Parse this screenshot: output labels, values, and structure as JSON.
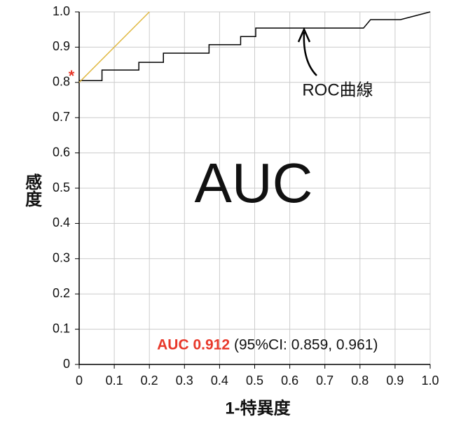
{
  "chart_data": {
    "type": "line",
    "xlabel": "1-特異度",
    "ylabel": "感度",
    "xlim": [
      0,
      1
    ],
    "ylim": [
      0,
      1
    ],
    "xticks": [
      0,
      0.1,
      0.2,
      0.3,
      0.4,
      0.5,
      0.6,
      0.7,
      0.8,
      0.9,
      {
        "value": 1,
        "label": "1.0"
      }
    ],
    "yticks": [
      0,
      0.1,
      0.2,
      0.3,
      0.4,
      0.5,
      0.6,
      0.7,
      0.8,
      0.9,
      {
        "value": 1,
        "label": "1.0"
      }
    ],
    "grid": true,
    "series": [
      {
        "color": "#000000",
        "x": [
          0,
          0.065,
          0.065,
          0.17,
          0.17,
          0.24,
          0.24,
          0.37,
          0.37,
          0.46,
          0.46,
          0.503,
          0.503,
          0.81,
          0.83,
          0.915,
          1
        ],
        "values": [
          0.805,
          0.805,
          0.835,
          0.835,
          0.857,
          0.857,
          0.883,
          0.883,
          0.907,
          0.907,
          0.93,
          0.93,
          0.954,
          0.954,
          0.978,
          0.978,
          1
        ]
      },
      {
        "color": "#e0b840",
        "x": [
          0,
          0.2
        ],
        "values": [
          0.8,
          1
        ]
      }
    ],
    "annotations": [
      "ROC曲線",
      "AUC",
      "*"
    ],
    "auc_text": "AUC 0.912",
    "ci_text": "(95%CI: 0.859, 0.961)"
  }
}
